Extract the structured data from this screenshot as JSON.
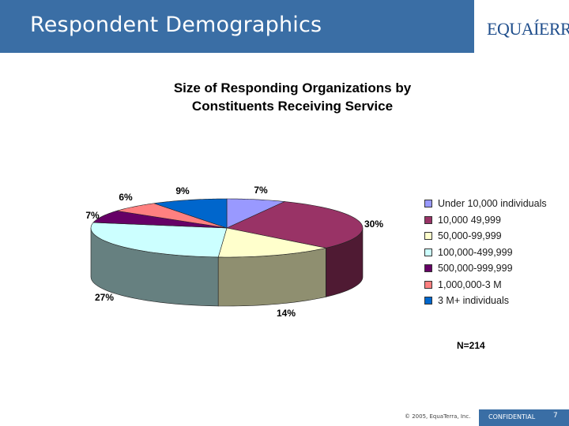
{
  "header": {
    "title": "Respondent Demographics",
    "logo_text": "EQUAÍERRA"
  },
  "chart_data": {
    "type": "pie",
    "title": "Size of Responding Organizations by Constituents Receiving Service",
    "title_lines": [
      "Size of Responding Organizations by",
      "Constituents Receiving Service"
    ],
    "three_d": true,
    "legend_placement": "right",
    "slices": [
      {
        "label": "Under 10,000 individuals",
        "value": 7,
        "value_label": "7%",
        "color": "#9999ff",
        "side_color": "#6b6bb3"
      },
      {
        "label": "10,000 49,999",
        "value": 30,
        "value_label": "30%",
        "color": "#993366",
        "side_color": "#4f1a33"
      },
      {
        "label": "50,000-99,999",
        "value": 14,
        "value_label": "14%",
        "color": "#ffffcc",
        "side_color": "#8f8f70"
      },
      {
        "label": "100,000-499,999",
        "value": 27,
        "value_label": "27%",
        "color": "#ccffff",
        "side_color": "#668080"
      },
      {
        "label": "500,000-999,999",
        "value": 7,
        "value_label": "7%",
        "color": "#660066",
        "side_color": "#330033"
      },
      {
        "label": "1,000,000-3 M",
        "value": 6,
        "value_label": "6%",
        "color": "#ff8080",
        "side_color": "#a35252"
      },
      {
        "label": "3 M+ individuals",
        "value": 9,
        "value_label": "9%",
        "color": "#0066cc",
        "side_color": "#003a73"
      }
    ],
    "n_label": "N=214"
  },
  "footer": {
    "copyright": "© 2005, EquaTerra, Inc.",
    "confidential": "CONFIDENTIAL",
    "page_number": "7"
  }
}
